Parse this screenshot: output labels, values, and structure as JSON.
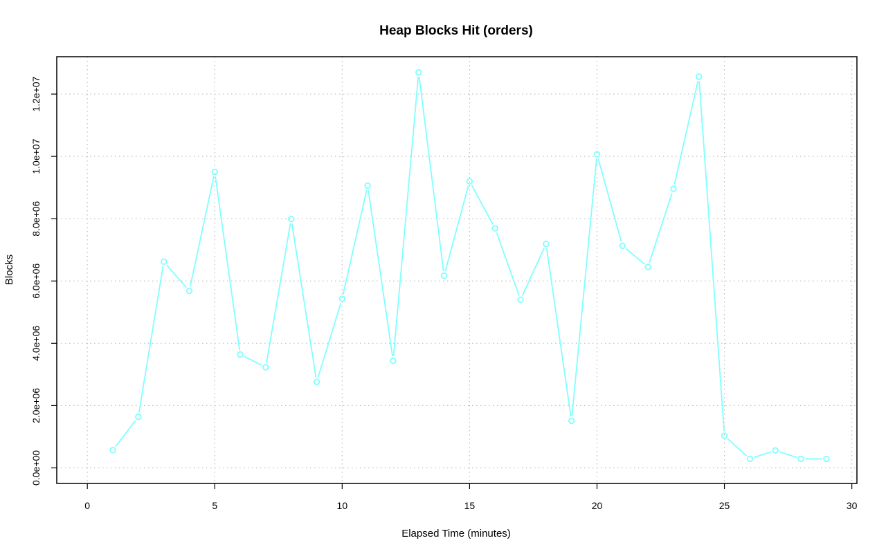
{
  "chart_data": {
    "type": "line",
    "title": "Heap Blocks Hit (orders)",
    "xlabel": "Elapsed Time (minutes)",
    "ylabel": "Blocks",
    "xlim": [
      -1.2,
      30.2
    ],
    "ylim": [
      -500000,
      13200000
    ],
    "xticks": [
      0,
      5,
      10,
      15,
      20,
      25,
      30
    ],
    "xtick_labels": [
      "0",
      "5",
      "10",
      "15",
      "20",
      "25",
      "30"
    ],
    "yticks": [
      0,
      2000000,
      4000000,
      6000000,
      8000000,
      10000000,
      12000000
    ],
    "ytick_labels": [
      "0.0e+00",
      "2.0e+06",
      "4.0e+06",
      "6.0e+06",
      "8.0e+06",
      "1.0e+07",
      "1.2e+07"
    ],
    "grid": true,
    "color": "#7fffff",
    "series": [
      {
        "x": [
          1,
          2,
          3,
          4,
          5,
          6,
          7,
          8,
          9,
          10,
          11,
          12,
          13,
          14,
          15,
          16,
          17,
          18,
          19,
          20,
          21,
          22,
          23,
          24,
          25,
          26,
          27,
          28,
          29
        ],
        "values": [
          570000,
          1640000,
          6620000,
          5680000,
          9500000,
          3640000,
          3230000,
          7990000,
          2760000,
          5430000,
          9060000,
          3440000,
          12700000,
          6170000,
          9200000,
          7690000,
          5400000,
          7190000,
          1510000,
          10070000,
          7130000,
          6450000,
          8960000,
          12560000,
          1030000,
          290000,
          560000,
          290000,
          290000
        ]
      }
    ]
  }
}
